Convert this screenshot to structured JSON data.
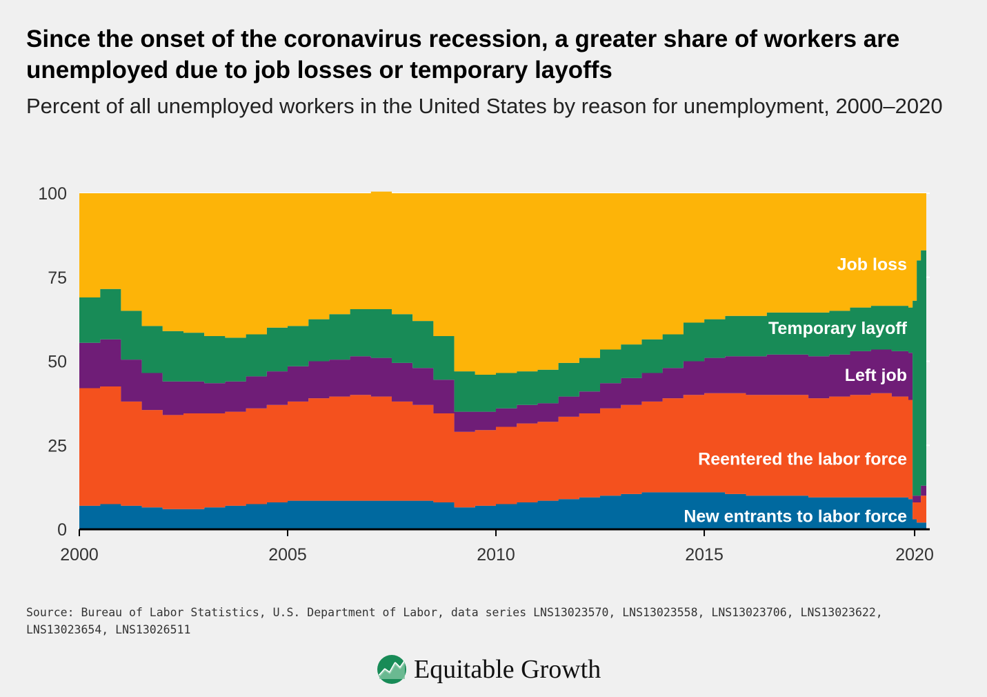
{
  "title": "Since the onset of the coronavirus recession, a greater share of workers are unemployed due to job losses or temporary layoffs",
  "subtitle": "Percent of all unemployed workers in the United States by reason for unemployment, 2000–2020",
  "source": "Source: Bureau of Labor Statistics, U.S. Department of Labor, data series LNS13023570, LNS13023558, LNS13023706, LNS13023622, LNS13023654, LNS13026511",
  "logo_text": "Equitable Growth",
  "colors": {
    "background": "#f0f0f0",
    "new_entrants": "#00699f",
    "reentered": "#f4511e",
    "left_job": "#6f1d77",
    "temporary_layoff": "#188b57",
    "job_loss": "#fdb408",
    "axis": "#000000",
    "gridline": "#ffffff"
  },
  "chart_data": {
    "type": "area",
    "stacked": true,
    "x_unit": "year",
    "xlim": [
      2000,
      2020.33
    ],
    "ylim": [
      0,
      100
    ],
    "x_ticks": [
      "2000",
      "2005",
      "2010",
      "2015",
      "2020"
    ],
    "y_ticks": [
      "0",
      "25",
      "50",
      "75",
      "100"
    ],
    "grid": "horizontal",
    "legend": "inline labels on right",
    "x": [
      2000.0,
      2000.5,
      2001.0,
      2001.5,
      2002.0,
      2002.5,
      2003.0,
      2003.5,
      2004.0,
      2004.5,
      2005.0,
      2005.5,
      2006.0,
      2006.5,
      2007.0,
      2007.5,
      2008.0,
      2008.5,
      2009.0,
      2009.5,
      2010.0,
      2010.5,
      2011.0,
      2011.5,
      2012.0,
      2012.5,
      2013.0,
      2013.5,
      2014.0,
      2014.5,
      2015.0,
      2015.5,
      2016.0,
      2016.5,
      2017.0,
      2017.5,
      2018.0,
      2018.5,
      2019.0,
      2019.5,
      2019.9,
      2020.0,
      2020.1,
      2020.2
    ],
    "series": [
      {
        "name": "New entrants to labor force",
        "key": "new_entrants",
        "label_y": 4,
        "values": [
          7,
          7.5,
          7,
          6.5,
          6,
          6,
          6.5,
          7,
          7.5,
          8,
          8.5,
          8.5,
          8.5,
          8.5,
          8.5,
          8.5,
          8.5,
          8,
          6.5,
          7,
          7.5,
          8,
          8.5,
          9,
          9.5,
          10,
          10.5,
          11,
          11,
          11,
          11,
          10.5,
          10,
          10,
          10,
          9.5,
          9.5,
          9.5,
          9.5,
          9.5,
          9,
          3,
          2,
          2
        ]
      },
      {
        "name": "Reentered the labor force",
        "key": "reentered",
        "label_y": 21,
        "values": [
          35,
          35,
          31,
          29,
          28,
          28.5,
          28,
          28,
          28.5,
          29,
          29.5,
          30.5,
          31,
          31.5,
          31,
          29.5,
          28.5,
          26.5,
          22.5,
          22.5,
          23,
          23.5,
          23.5,
          24.5,
          25,
          26,
          26.5,
          27,
          28,
          29,
          29.5,
          30,
          30,
          30,
          30,
          29.5,
          30,
          30.5,
          31,
          30,
          29.5,
          5,
          6,
          8
        ]
      },
      {
        "name": "Left job",
        "key": "left_job",
        "label_y": 46,
        "values": [
          13.5,
          14,
          12.5,
          11,
          10,
          9.5,
          9,
          9,
          9.5,
          10,
          10.5,
          11,
          11,
          11.5,
          11.5,
          11.5,
          11,
          10,
          6,
          5.5,
          5.5,
          5.5,
          5.5,
          6,
          6.5,
          7.5,
          8,
          8.5,
          9,
          10,
          10.5,
          11,
          11.5,
          12,
          12,
          12.5,
          12.5,
          13,
          13,
          13.5,
          14,
          2,
          2,
          3
        ]
      },
      {
        "name": "Temporary layoff",
        "key": "temporary_layoff",
        "label_y": 60,
        "values": [
          13.5,
          15,
          14.5,
          14,
          15,
          14.5,
          14,
          13,
          12.5,
          13,
          12,
          12.5,
          13.5,
          14,
          14.5,
          14.5,
          14,
          13,
          12,
          11,
          10.5,
          10,
          10,
          10,
          10,
          10,
          10,
          10,
          10,
          11.5,
          11.5,
          12,
          12,
          12.5,
          12.5,
          13,
          13,
          13,
          13,
          13.5,
          13.5,
          58,
          70,
          70
        ]
      },
      {
        "name": "Job loss",
        "key": "job_loss",
        "label_y": 79,
        "values": [
          31,
          28.5,
          35,
          39.5,
          41,
          41.5,
          42.5,
          43,
          42,
          40,
          39.5,
          37.5,
          36,
          34.5,
          35,
          36,
          38,
          42.5,
          53,
          54,
          53.5,
          53,
          52.5,
          50.5,
          49,
          46.5,
          45,
          43.5,
          42,
          38.5,
          37.5,
          36.5,
          36.5,
          35.5,
          35.5,
          35.5,
          35,
          34,
          33.5,
          33.5,
          34,
          32,
          20,
          17
        ]
      }
    ]
  }
}
